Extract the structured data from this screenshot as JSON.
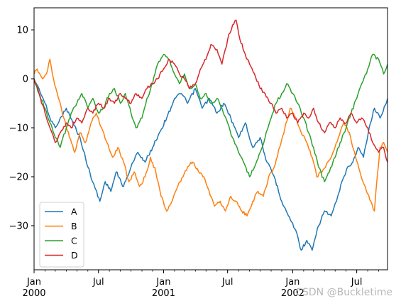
{
  "watermark": "CSDN @Buckletime",
  "chart_data": {
    "type": "line",
    "title": "",
    "xlabel": "",
    "ylabel": "",
    "x_range": [
      "2000-01-01",
      "2002-09-26"
    ],
    "ylim": [
      -39,
      14.5
    ],
    "y_ticks": [
      10,
      0,
      -10,
      -20,
      -30
    ],
    "y_tick_labels": [
      "10",
      "0",
      "−10",
      "−20",
      "−30"
    ],
    "x_major_ticks": [
      {
        "date": "2000-01-01",
        "line1": "Jan",
        "line2": "2000"
      },
      {
        "date": "2000-07-01",
        "line1": "Jul",
        "line2": ""
      },
      {
        "date": "2001-01-01",
        "line1": "Jan",
        "line2": "2001"
      },
      {
        "date": "2001-07-01",
        "line1": "Jul",
        "line2": ""
      },
      {
        "date": "2002-01-01",
        "line1": "Jan",
        "line2": "2002"
      },
      {
        "date": "2002-07-01",
        "line1": "Jul",
        "line2": ""
      }
    ],
    "grid": false,
    "legend_position": "lower-left",
    "series": [
      {
        "name": "A",
        "color": "#1f77b4",
        "points": [
          [
            "2000-01-01",
            0
          ],
          [
            "2000-01-15",
            -2
          ],
          [
            "2000-02-01",
            -5
          ],
          [
            "2000-02-15",
            -8
          ],
          [
            "2000-03-01",
            -10
          ],
          [
            "2000-03-15",
            -8
          ],
          [
            "2000-04-01",
            -6
          ],
          [
            "2000-04-20",
            -9
          ],
          [
            "2000-05-10",
            -12
          ],
          [
            "2000-06-01",
            -18
          ],
          [
            "2000-06-20",
            -22
          ],
          [
            "2000-07-05",
            -25
          ],
          [
            "2000-07-20",
            -21
          ],
          [
            "2000-08-05",
            -23
          ],
          [
            "2000-08-20",
            -19
          ],
          [
            "2000-09-10",
            -22
          ],
          [
            "2000-10-01",
            -18
          ],
          [
            "2000-10-20",
            -15
          ],
          [
            "2000-11-10",
            -17
          ],
          [
            "2000-12-01",
            -14
          ],
          [
            "2000-12-20",
            -11
          ],
          [
            "2001-01-10",
            -8
          ],
          [
            "2001-02-01",
            -4
          ],
          [
            "2001-02-20",
            -3
          ],
          [
            "2001-03-10",
            -5
          ],
          [
            "2001-04-01",
            -2
          ],
          [
            "2001-04-20",
            -6
          ],
          [
            "2001-05-10",
            -4
          ],
          [
            "2001-06-01",
            -7
          ],
          [
            "2001-06-20",
            -5
          ],
          [
            "2001-07-10",
            -8
          ],
          [
            "2001-08-01",
            -12
          ],
          [
            "2001-08-20",
            -9
          ],
          [
            "2001-09-10",
            -14
          ],
          [
            "2001-10-01",
            -12
          ],
          [
            "2001-10-20",
            -17
          ],
          [
            "2001-11-10",
            -20
          ],
          [
            "2001-12-01",
            -25
          ],
          [
            "2001-12-20",
            -28
          ],
          [
            "2002-01-10",
            -31
          ],
          [
            "2002-01-25",
            -35
          ],
          [
            "2002-02-10",
            -33
          ],
          [
            "2002-02-25",
            -35
          ],
          [
            "2002-03-15",
            -30
          ],
          [
            "2002-04-01",
            -27
          ],
          [
            "2002-04-20",
            -28
          ],
          [
            "2002-05-05",
            -25
          ],
          [
            "2002-05-20",
            -21
          ],
          [
            "2002-06-05",
            -18
          ],
          [
            "2002-06-20",
            -17
          ],
          [
            "2002-07-05",
            -14
          ],
          [
            "2002-07-20",
            -16
          ],
          [
            "2002-08-05",
            -10
          ],
          [
            "2002-08-20",
            -6
          ],
          [
            "2002-09-05",
            -8
          ],
          [
            "2002-09-26",
            -4
          ]
        ]
      },
      {
        "name": "B",
        "color": "#ff7f0e",
        "points": [
          [
            "2000-01-01",
            1
          ],
          [
            "2000-01-10",
            2
          ],
          [
            "2000-01-25",
            0
          ],
          [
            "2000-02-05",
            1
          ],
          [
            "2000-02-15",
            4
          ],
          [
            "2000-02-25",
            0
          ],
          [
            "2000-03-10",
            -4
          ],
          [
            "2000-03-25",
            -8
          ],
          [
            "2000-04-10",
            -12
          ],
          [
            "2000-04-25",
            -15
          ],
          [
            "2000-05-10",
            -11
          ],
          [
            "2000-05-25",
            -13
          ],
          [
            "2000-06-10",
            -9
          ],
          [
            "2000-06-25",
            -7
          ],
          [
            "2000-07-10",
            -10
          ],
          [
            "2000-07-25",
            -13
          ],
          [
            "2000-08-10",
            -16
          ],
          [
            "2000-08-25",
            -14
          ],
          [
            "2000-09-10",
            -17
          ],
          [
            "2000-09-25",
            -21
          ],
          [
            "2000-10-10",
            -19
          ],
          [
            "2000-10-25",
            -22
          ],
          [
            "2000-11-10",
            -20
          ],
          [
            "2000-11-25",
            -16
          ],
          [
            "2000-12-10",
            -19
          ],
          [
            "2000-12-25",
            -24
          ],
          [
            "2001-01-10",
            -27
          ],
          [
            "2001-01-25",
            -25
          ],
          [
            "2001-02-10",
            -22
          ],
          [
            "2001-02-25",
            -20
          ],
          [
            "2001-03-10",
            -18
          ],
          [
            "2001-03-25",
            -17
          ],
          [
            "2001-04-10",
            -19
          ],
          [
            "2001-04-25",
            -20
          ],
          [
            "2001-05-10",
            -23
          ],
          [
            "2001-05-25",
            -26
          ],
          [
            "2001-06-10",
            -25
          ],
          [
            "2001-06-25",
            -27
          ],
          [
            "2001-07-10",
            -24
          ],
          [
            "2001-07-25",
            -25
          ],
          [
            "2001-08-10",
            -27
          ],
          [
            "2001-08-25",
            -28
          ],
          [
            "2001-09-10",
            -25
          ],
          [
            "2001-09-25",
            -23
          ],
          [
            "2001-10-10",
            -24
          ],
          [
            "2001-10-25",
            -20
          ],
          [
            "2001-11-10",
            -18
          ],
          [
            "2001-11-25",
            -14
          ],
          [
            "2001-12-10",
            -10
          ],
          [
            "2001-12-25",
            -6
          ],
          [
            "2002-01-10",
            -8
          ],
          [
            "2002-01-25",
            -11
          ],
          [
            "2002-02-10",
            -13
          ],
          [
            "2002-02-25",
            -16
          ],
          [
            "2002-03-10",
            -20
          ],
          [
            "2002-03-25",
            -19
          ],
          [
            "2002-04-10",
            -17
          ],
          [
            "2002-04-25",
            -15
          ],
          [
            "2002-05-10",
            -12
          ],
          [
            "2002-05-25",
            -9
          ],
          [
            "2002-06-10",
            -11
          ],
          [
            "2002-06-25",
            -15
          ],
          [
            "2002-07-10",
            -19
          ],
          [
            "2002-07-25",
            -22
          ],
          [
            "2002-08-10",
            -25
          ],
          [
            "2002-08-20",
            -27
          ],
          [
            "2002-08-28",
            -20
          ],
          [
            "2002-09-05",
            -14
          ],
          [
            "2002-09-15",
            -13
          ],
          [
            "2002-09-26",
            -15
          ]
        ]
      },
      {
        "name": "C",
        "color": "#2ca02c",
        "points": [
          [
            "2000-01-01",
            0
          ],
          [
            "2000-01-15",
            -3
          ],
          [
            "2000-02-01",
            -6
          ],
          [
            "2000-02-15",
            -9
          ],
          [
            "2000-03-01",
            -12
          ],
          [
            "2000-03-15",
            -14
          ],
          [
            "2000-04-01",
            -10
          ],
          [
            "2000-04-15",
            -7
          ],
          [
            "2000-05-01",
            -5
          ],
          [
            "2000-05-15",
            -3
          ],
          [
            "2000-06-01",
            -6
          ],
          [
            "2000-06-15",
            -4
          ],
          [
            "2000-07-01",
            -7
          ],
          [
            "2000-07-15",
            -6
          ],
          [
            "2000-08-01",
            -3
          ],
          [
            "2000-08-15",
            -2
          ],
          [
            "2000-09-01",
            -5
          ],
          [
            "2000-09-15",
            -3
          ],
          [
            "2000-10-01",
            -7
          ],
          [
            "2000-10-15",
            -10
          ],
          [
            "2000-11-01",
            -8
          ],
          [
            "2000-11-15",
            -4
          ],
          [
            "2000-12-01",
            -1
          ],
          [
            "2000-12-15",
            3
          ],
          [
            "2001-01-01",
            5
          ],
          [
            "2001-01-15",
            4
          ],
          [
            "2001-02-01",
            1
          ],
          [
            "2001-02-15",
            -1
          ],
          [
            "2001-03-01",
            1
          ],
          [
            "2001-03-15",
            -2
          ],
          [
            "2001-04-01",
            -1
          ],
          [
            "2001-04-15",
            -4
          ],
          [
            "2001-05-01",
            -3
          ],
          [
            "2001-05-15",
            -5
          ],
          [
            "2001-06-01",
            -4
          ],
          [
            "2001-06-15",
            -6
          ],
          [
            "2001-07-01",
            -9
          ],
          [
            "2001-07-15",
            -12
          ],
          [
            "2001-08-01",
            -15
          ],
          [
            "2001-08-15",
            -17
          ],
          [
            "2001-09-01",
            -20
          ],
          [
            "2001-09-15",
            -18
          ],
          [
            "2001-10-01",
            -15
          ],
          [
            "2001-10-15",
            -12
          ],
          [
            "2001-11-01",
            -8
          ],
          [
            "2001-11-15",
            -5
          ],
          [
            "2001-12-01",
            -3
          ],
          [
            "2001-12-15",
            -1
          ],
          [
            "2002-01-01",
            -3
          ],
          [
            "2002-01-15",
            -5
          ],
          [
            "2002-02-01",
            -8
          ],
          [
            "2002-02-15",
            -11
          ],
          [
            "2002-03-01",
            -14
          ],
          [
            "2002-03-15",
            -18
          ],
          [
            "2002-04-01",
            -21
          ],
          [
            "2002-04-15",
            -19
          ],
          [
            "2002-05-01",
            -16
          ],
          [
            "2002-05-15",
            -13
          ],
          [
            "2002-06-01",
            -10
          ],
          [
            "2002-06-15",
            -7
          ],
          [
            "2002-07-01",
            -4
          ],
          [
            "2002-07-15",
            -1
          ],
          [
            "2002-08-01",
            2
          ],
          [
            "2002-08-15",
            5
          ],
          [
            "2002-09-01",
            4
          ],
          [
            "2002-09-15",
            1
          ],
          [
            "2002-09-26",
            3
          ]
        ]
      },
      {
        "name": "D",
        "color": "#d62728",
        "points": [
          [
            "2000-01-01",
            0
          ],
          [
            "2000-01-15",
            -3
          ],
          [
            "2000-02-01",
            -7
          ],
          [
            "2000-02-15",
            -10
          ],
          [
            "2000-03-01",
            -13
          ],
          [
            "2000-03-15",
            -11
          ],
          [
            "2000-04-01",
            -9
          ],
          [
            "2000-04-15",
            -10
          ],
          [
            "2000-05-01",
            -8
          ],
          [
            "2000-05-15",
            -9
          ],
          [
            "2000-06-01",
            -6
          ],
          [
            "2000-06-15",
            -7
          ],
          [
            "2000-07-01",
            -5
          ],
          [
            "2000-07-15",
            -6
          ],
          [
            "2000-08-01",
            -4
          ],
          [
            "2000-08-15",
            -5
          ],
          [
            "2000-09-01",
            -3
          ],
          [
            "2000-09-15",
            -4
          ],
          [
            "2000-10-01",
            -5
          ],
          [
            "2000-10-15",
            -3
          ],
          [
            "2000-11-01",
            -4
          ],
          [
            "2000-11-15",
            -2
          ],
          [
            "2000-12-01",
            -1
          ],
          [
            "2000-12-15",
            0
          ],
          [
            "2001-01-01",
            2
          ],
          [
            "2001-01-15",
            4
          ],
          [
            "2001-02-01",
            3
          ],
          [
            "2001-02-15",
            1
          ],
          [
            "2001-03-01",
            0
          ],
          [
            "2001-03-15",
            -2
          ],
          [
            "2001-04-01",
            -1
          ],
          [
            "2001-04-15",
            2
          ],
          [
            "2001-05-01",
            4
          ],
          [
            "2001-05-15",
            7
          ],
          [
            "2001-06-01",
            6
          ],
          [
            "2001-06-15",
            3
          ],
          [
            "2001-07-01",
            8
          ],
          [
            "2001-07-15",
            11
          ],
          [
            "2001-07-25",
            12
          ],
          [
            "2001-08-05",
            8
          ],
          [
            "2001-08-20",
            5
          ],
          [
            "2001-09-01",
            3
          ],
          [
            "2001-09-15",
            1
          ],
          [
            "2001-10-01",
            -2
          ],
          [
            "2001-10-15",
            -3
          ],
          [
            "2001-11-01",
            -5
          ],
          [
            "2001-11-15",
            -7
          ],
          [
            "2001-12-01",
            -6
          ],
          [
            "2001-12-15",
            -8
          ],
          [
            "2002-01-01",
            -7
          ],
          [
            "2002-01-15",
            -9
          ],
          [
            "2002-02-01",
            -7
          ],
          [
            "2002-02-15",
            -8
          ],
          [
            "2002-03-01",
            -6
          ],
          [
            "2002-03-15",
            -9
          ],
          [
            "2002-04-01",
            -11
          ],
          [
            "2002-04-15",
            -9
          ],
          [
            "2002-05-01",
            -10
          ],
          [
            "2002-05-15",
            -8
          ],
          [
            "2002-06-01",
            -9
          ],
          [
            "2002-06-15",
            -7
          ],
          [
            "2002-07-01",
            -9
          ],
          [
            "2002-07-15",
            -8
          ],
          [
            "2002-08-01",
            -10
          ],
          [
            "2002-08-15",
            -13
          ],
          [
            "2002-09-01",
            -15
          ],
          [
            "2002-09-15",
            -14
          ],
          [
            "2002-09-26",
            -17
          ]
        ]
      }
    ]
  }
}
